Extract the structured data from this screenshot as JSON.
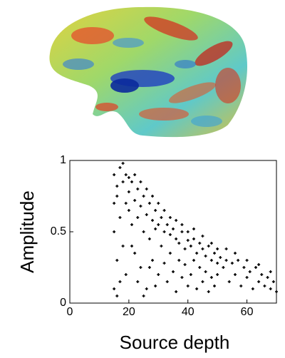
{
  "chart_data": {
    "type": "scatter",
    "xlabel": "Source depth",
    "ylabel": "Amplitude",
    "color": "#000000",
    "xlim": [
      0,
      70
    ],
    "ylim": [
      0,
      1
    ],
    "xticks": [
      0,
      20,
      40,
      60
    ],
    "yticks": [
      0,
      0.5,
      1
    ],
    "x": [
      15,
      16,
      15,
      16,
      15,
      17,
      17,
      18,
      18,
      19,
      19,
      20,
      20,
      16,
      17,
      18,
      19,
      20,
      15,
      16,
      21,
      21,
      22,
      22,
      23,
      23,
      24,
      24,
      25,
      25,
      26,
      26,
      27,
      27,
      28,
      28,
      29,
      29,
      30,
      30,
      22,
      24,
      26,
      28,
      30,
      23,
      25,
      27,
      29,
      21,
      31,
      31,
      32,
      32,
      33,
      33,
      34,
      34,
      35,
      35,
      36,
      36,
      37,
      37,
      38,
      38,
      39,
      39,
      40,
      40,
      32,
      34,
      36,
      38,
      40,
      41,
      41,
      42,
      42,
      43,
      43,
      44,
      44,
      45,
      45,
      46,
      46,
      47,
      47,
      48,
      48,
      49,
      49,
      50,
      50,
      42,
      45,
      48,
      50,
      51,
      52,
      53,
      54,
      55,
      56,
      57,
      58,
      59,
      60,
      61,
      62,
      63,
      64,
      65,
      66,
      67,
      68,
      69,
      70,
      53,
      56,
      60,
      64,
      68
    ],
    "y": [
      0.9,
      0.75,
      0.5,
      0.3,
      0.1,
      0.95,
      0.6,
      0.85,
      0.4,
      0.7,
      0.2,
      0.88,
      0.65,
      0.05,
      0.15,
      0.98,
      0.9,
      0.78,
      0.7,
      0.82,
      0.85,
      0.55,
      0.72,
      0.35,
      0.8,
      0.6,
      0.68,
      0.25,
      0.75,
      0.5,
      0.62,
      0.1,
      0.7,
      0.45,
      0.58,
      0.3,
      0.65,
      0.52,
      0.55,
      0.2,
      0.9,
      0.85,
      0.8,
      0.75,
      0.7,
      0.15,
      0.05,
      0.25,
      0.12,
      0.4,
      0.6,
      0.4,
      0.5,
      0.28,
      0.55,
      0.15,
      0.48,
      0.35,
      0.52,
      0.22,
      0.45,
      0.08,
      0.42,
      0.3,
      0.5,
      0.18,
      0.38,
      0.27,
      0.44,
      0.12,
      0.65,
      0.6,
      0.58,
      0.55,
      0.5,
      0.4,
      0.2,
      0.45,
      0.3,
      0.35,
      0.1,
      0.42,
      0.25,
      0.38,
      0.15,
      0.33,
      0.22,
      0.4,
      0.08,
      0.3,
      0.18,
      0.35,
      0.12,
      0.28,
      0.2,
      0.52,
      0.47,
      0.42,
      0.38,
      0.32,
      0.25,
      0.3,
      0.15,
      0.28,
      0.2,
      0.3,
      0.12,
      0.25,
      0.18,
      0.22,
      0.1,
      0.25,
      0.15,
      0.2,
      0.12,
      0.18,
      0.1,
      0.15,
      0.08,
      0.38,
      0.35,
      0.3,
      0.27,
      0.22
    ]
  }
}
